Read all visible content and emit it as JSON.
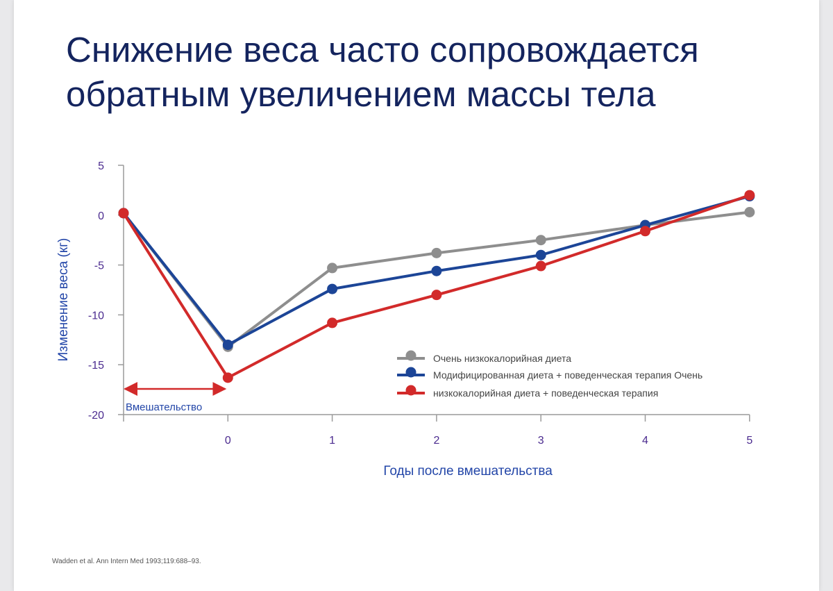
{
  "title_lines": [
    "Снижение веса часто сопровождается",
    "обратным увеличением массы тела"
  ],
  "source": "Wadden et al. Ann Intern Med 1993;119:688–93.",
  "intervention_label": "Вмешательство",
  "colors": {
    "gray": "#8e8e8e",
    "blue": "#1c4597",
    "red": "#d22a2a",
    "title": "#14245e"
  },
  "chart_data": {
    "type": "line",
    "title": "",
    "xlabel": "Годы после вмешательства",
    "ylabel": "Изменение веса (кг)",
    "ylim": [
      -20,
      5
    ],
    "yticks": [
      "5",
      "0",
      "-5",
      "-10",
      "-15",
      "-20"
    ],
    "xticks": [
      "0",
      "1",
      "2",
      "3",
      "4",
      "5"
    ],
    "x": [
      -1,
      0,
      1,
      2,
      3,
      4,
      5
    ],
    "grid": false,
    "legend_position": "lower-right",
    "series": [
      {
        "name": "Очень низкокалорийная диета",
        "color": "#8e8e8e",
        "values": [
          0.2,
          -13.2,
          -5.3,
          -3.8,
          -2.5,
          -1.0,
          0.3
        ]
      },
      {
        "name": "Модифицированная диета + поведенческая терапия  Очень",
        "color": "#1c4597",
        "values": [
          0.2,
          -13.0,
          -7.4,
          -5.6,
          -4.0,
          -1.0,
          1.9
        ]
      },
      {
        "name": "низкокалорийная диета + поведенческая терапия",
        "color": "#d22a2a",
        "values": [
          0.2,
          -16.3,
          -10.8,
          -8.0,
          -5.1,
          -1.6,
          2.0
        ]
      }
    ]
  }
}
